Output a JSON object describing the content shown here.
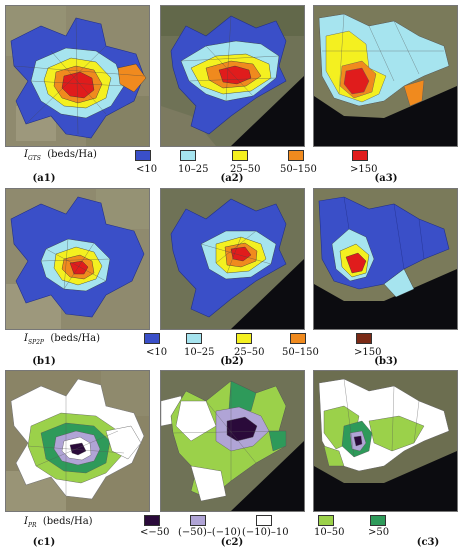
{
  "rows": [
    {
      "variable": {
        "symbol": "I",
        "subscript": "GTS",
        "unit": "(beds/Ha)"
      },
      "panels": [
        "(a1)",
        "(a2)",
        "(a3)"
      ],
      "legend": [
        {
          "label": "<10",
          "color": "#3a4fc8"
        },
        {
          "label": "10–25",
          "color": "#a6e4ef"
        },
        {
          "label": "25–50",
          "color": "#f4f020"
        },
        {
          "label": "50–150",
          "color": "#f08a1e"
        },
        {
          "label": ">150",
          "color": "#e01c1c"
        }
      ]
    },
    {
      "variable": {
        "symbol": "I",
        "subscript": "SP2P",
        "unit": "(beds/Ha)"
      },
      "panels": [
        "(b1)",
        "(b2)",
        "(b3)"
      ],
      "legend": [
        {
          "label": "<10",
          "color": "#3a4fc8"
        },
        {
          "label": "10–25",
          "color": "#a6e4ef"
        },
        {
          "label": "25–50",
          "color": "#f4f020"
        },
        {
          "label": "50–150",
          "color": "#f08a1e"
        },
        {
          "label": ">150",
          "color": "#7a2a16"
        }
      ]
    },
    {
      "variable": {
        "symbol": "I",
        "subscript": "PR",
        "unit": "(beds/Ha)"
      },
      "panels": [
        "(c1)",
        "(c2)",
        "(c3)"
      ],
      "legend": [
        {
          "label": "<−50",
          "color": "#2a0a3a"
        },
        {
          "label": "(−50)–(−10)",
          "color": "#b0a4d6"
        },
        {
          "label": "(−10)–10",
          "color": "#ffffff"
        },
        {
          "label": "10–50",
          "color": "#9bd14a"
        },
        {
          "label": ">50",
          "color": "#2e9a5a"
        }
      ]
    }
  ]
}
